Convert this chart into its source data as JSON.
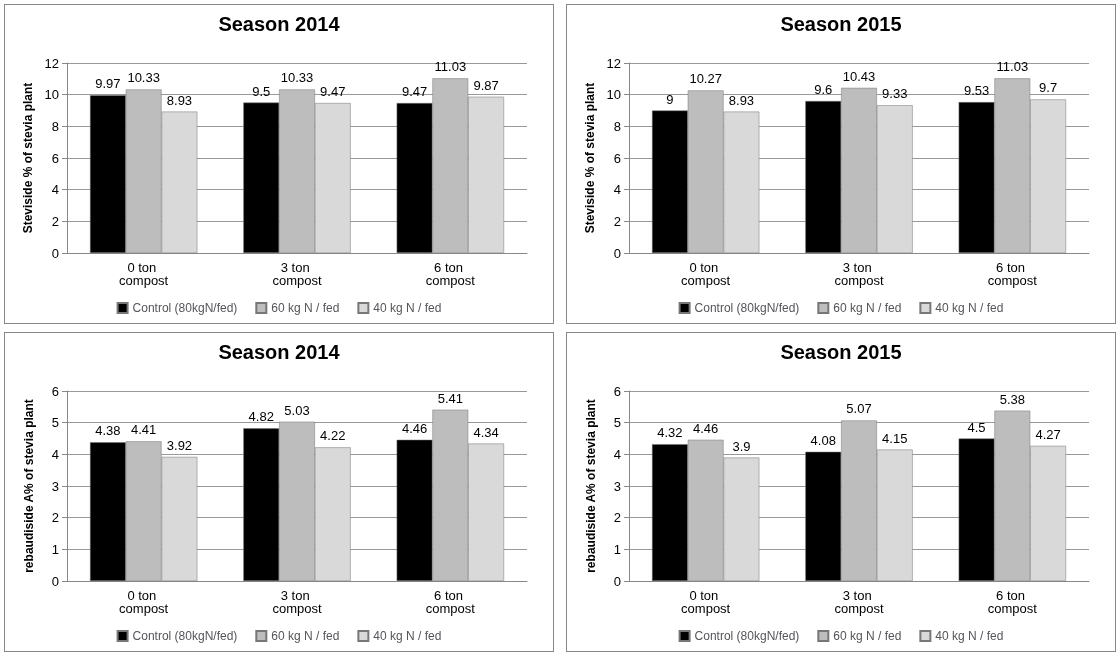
{
  "chart_data": [
    {
      "type": "bar",
      "title": "Season 2014",
      "ylabel": "Steviside % of stevia plant",
      "categories": [
        "0 ton compost",
        "3 ton compost",
        "6 ton compost"
      ],
      "series": [
        {
          "name": "Control (80kgN/fed)",
          "color": "#000000",
          "values": [
            9.97,
            9.5,
            9.47
          ]
        },
        {
          "name": "60 kg N / fed",
          "color": "#bdbdbd",
          "values": [
            10.33,
            10.33,
            11.03
          ]
        },
        {
          "name": "40 kg N / fed",
          "color": "#d9d9d9",
          "values": [
            8.93,
            9.47,
            9.87
          ]
        }
      ],
      "ylim": [
        0,
        12
      ],
      "yticks": [
        0,
        2,
        4,
        6,
        8,
        10,
        12
      ],
      "grid": "y",
      "legend": "bottom",
      "data_labels": true
    },
    {
      "type": "bar",
      "title": "Season 2015",
      "ylabel": "Steviside % of stevia plant",
      "categories": [
        "0 ton compost",
        "3 ton compost",
        "6 ton compost"
      ],
      "series": [
        {
          "name": "Control (80kgN/fed)",
          "color": "#000000",
          "values": [
            9,
            9.6,
            9.53
          ]
        },
        {
          "name": "60 kg N / fed",
          "color": "#bdbdbd",
          "values": [
            10.27,
            10.43,
            11.03
          ]
        },
        {
          "name": "40 kg N / fed",
          "color": "#d9d9d9",
          "values": [
            8.93,
            9.33,
            9.7
          ]
        }
      ],
      "ylim": [
        0,
        12
      ],
      "yticks": [
        0,
        2,
        4,
        6,
        8,
        10,
        12
      ],
      "grid": "y",
      "legend": "bottom",
      "data_labels": true
    },
    {
      "type": "bar",
      "title": "Season 2014",
      "ylabel": "rebaudiside A% of stevia plant",
      "categories": [
        "0 ton compost",
        "3 ton compost",
        "6 ton compost"
      ],
      "series": [
        {
          "name": "Control (80kgN/fed)",
          "color": "#000000",
          "values": [
            4.38,
            4.82,
            4.46
          ]
        },
        {
          "name": "60 kg N / fed",
          "color": "#bdbdbd",
          "values": [
            4.41,
            5.03,
            5.41
          ]
        },
        {
          "name": "40 kg N / fed",
          "color": "#d9d9d9",
          "values": [
            3.92,
            4.22,
            4.34
          ]
        }
      ],
      "ylim": [
        0,
        6
      ],
      "yticks": [
        0,
        1,
        2,
        3,
        4,
        5,
        6
      ],
      "grid": "y",
      "legend": "bottom",
      "data_labels": true
    },
    {
      "type": "bar",
      "title": "Season 2015",
      "ylabel": "rebaudiside A% of stevia plant",
      "categories": [
        "0 ton compost",
        "3 ton compost",
        "6 ton compost"
      ],
      "series": [
        {
          "name": "Control (80kgN/fed)",
          "color": "#000000",
          "values": [
            4.32,
            4.08,
            4.5
          ]
        },
        {
          "name": "60 kg N / fed",
          "color": "#bdbdbd",
          "values": [
            4.46,
            5.07,
            5.38
          ]
        },
        {
          "name": "40 kg N / fed",
          "color": "#d9d9d9",
          "values": [
            3.9,
            4.15,
            4.27
          ]
        }
      ],
      "ylim": [
        0,
        6
      ],
      "yticks": [
        0,
        1,
        2,
        3,
        4,
        5,
        6
      ],
      "grid": "y",
      "legend": "bottom",
      "data_labels": true
    }
  ]
}
